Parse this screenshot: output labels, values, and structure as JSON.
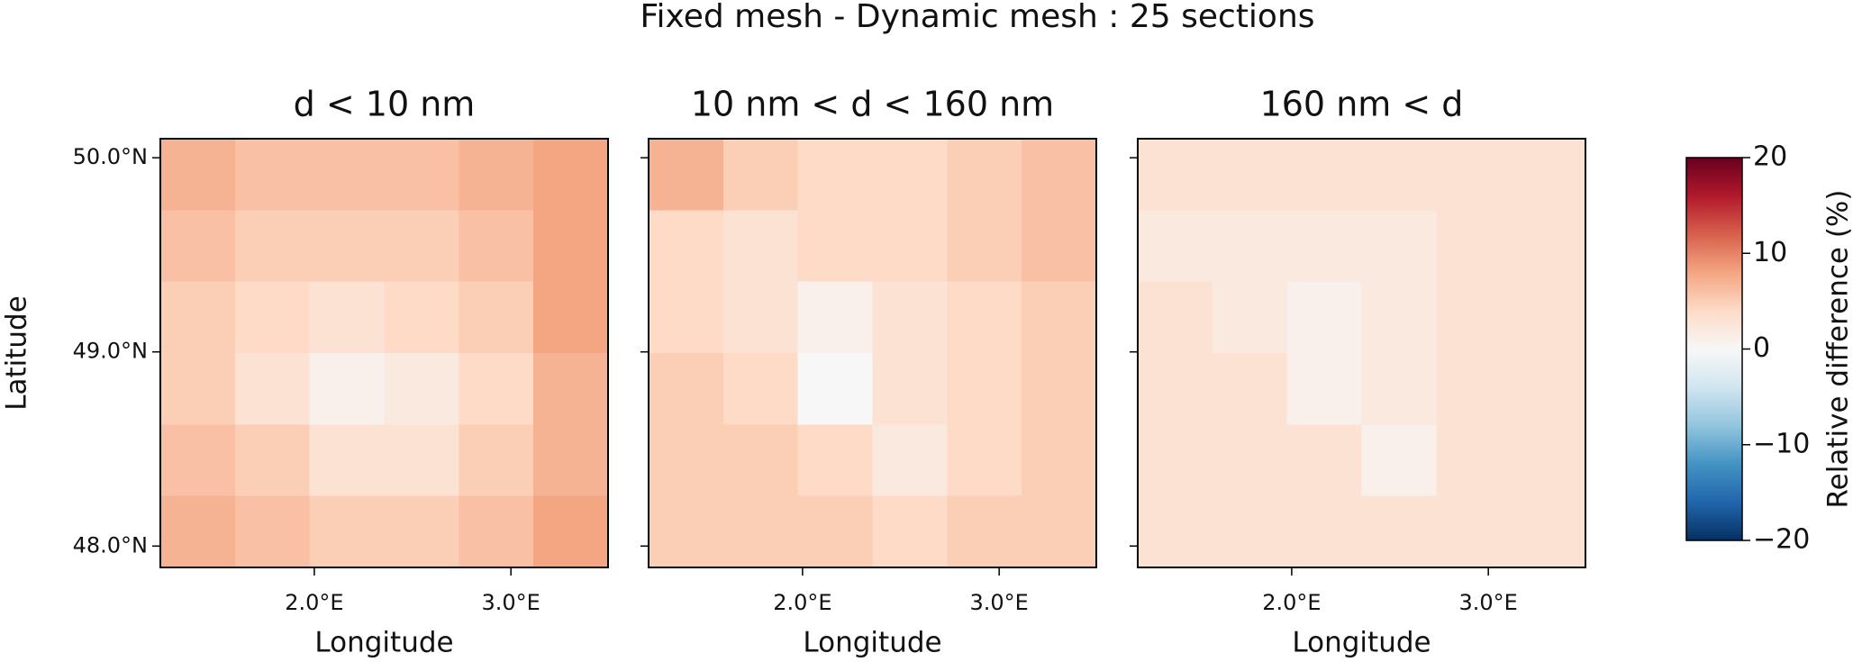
{
  "chart_data": {
    "type": "heatmap",
    "title": "Fixed mesh - Dynamic mesh : 25 sections",
    "xlabel": "Longitude",
    "ylabel": "Latitude",
    "xlim": [
      1.217,
      3.494
    ],
    "ylim": [
      47.89,
      50.098
    ],
    "xticks": [
      {
        "value": 2,
        "label": "2.0°E"
      },
      {
        "value": 3,
        "label": "3.0°E"
      }
    ],
    "yticks": [
      {
        "value": 48,
        "label": "48.0°N"
      },
      {
        "value": 49,
        "label": "49.0°N"
      },
      {
        "value": 50,
        "label": "50.0°N"
      }
    ],
    "colormap": "RdBu_r",
    "panels": [
      {
        "title": "d < 10 nm",
        "z": [
          [
            7,
            6,
            6,
            6,
            7,
            8
          ],
          [
            6,
            5,
            5,
            5,
            6,
            8
          ],
          [
            5,
            4,
            3,
            4,
            5,
            8
          ],
          [
            5,
            3,
            1,
            2,
            4,
            7
          ],
          [
            6,
            5,
            3,
            3,
            5,
            7
          ],
          [
            7,
            6,
            5,
            5,
            6,
            8
          ]
        ]
      },
      {
        "title": "10 nm < d < 160 nm",
        "z": [
          [
            7,
            5,
            4,
            4,
            5,
            6
          ],
          [
            4,
            3,
            4,
            4,
            5,
            6
          ],
          [
            4,
            3,
            1,
            3,
            4,
            5
          ],
          [
            5,
            4,
            0,
            3,
            4,
            5
          ],
          [
            5,
            5,
            4,
            2,
            4,
            5
          ],
          [
            5,
            5,
            5,
            4,
            5,
            5
          ]
        ]
      },
      {
        "title": "160 nm < d",
        "z": [
          [
            3,
            3,
            3,
            3,
            3,
            3
          ],
          [
            2,
            2,
            2,
            2,
            3,
            3
          ],
          [
            3,
            2,
            1,
            2,
            3,
            3
          ],
          [
            3,
            3,
            1,
            2,
            3,
            3
          ],
          [
            3,
            3,
            3,
            1,
            3,
            3
          ],
          [
            3,
            3,
            3,
            3,
            3,
            3
          ]
        ]
      }
    ],
    "colorbar": {
      "label": "Relative difference (%)",
      "lim": [
        -20,
        20
      ],
      "ticks": [
        {
          "value": -20,
          "label": "−20"
        },
        {
          "value": -10,
          "label": "−10"
        },
        0,
        10,
        20
      ]
    }
  }
}
